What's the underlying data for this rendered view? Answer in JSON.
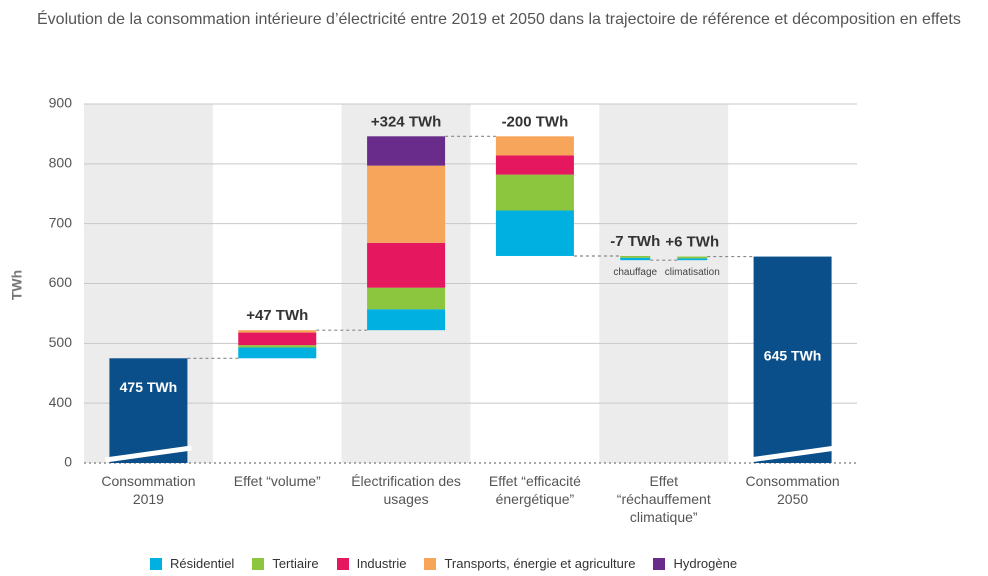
{
  "chart_data": {
    "type": "waterfall",
    "title": "Évolution de la consommation intérieure d’électricité entre 2019 et 2050 dans la trajectoire de référence et décomposition en effets",
    "ylabel": "TWh",
    "ylim": [
      0,
      900
    ],
    "yticks": [
      0,
      400,
      500,
      600,
      700,
      800,
      900
    ],
    "categories": [
      "Consommation 2019",
      "Effet “volume”",
      "Électrification des usages",
      "Effet “efficacité énergétique”",
      "Effet “réchauffement climatique”",
      "Consommation 2050"
    ],
    "start": {
      "value": 475,
      "label": "475 TWh",
      "color": "#0b4f8a"
    },
    "end": {
      "value": 645,
      "label": "645 TWh",
      "color": "#0b4f8a"
    },
    "series": [
      {
        "name": "Résidentiel",
        "color": "#00b0e0"
      },
      {
        "name": "Tertiaire",
        "color": "#8cc63f"
      },
      {
        "name": "Industrie",
        "color": "#e5175f"
      },
      {
        "name": "Transports, énergie et agriculture",
        "color": "#f7a55b"
      },
      {
        "name": "Hydrogène",
        "color": "#6a2c8a"
      }
    ],
    "steps": [
      {
        "bars": [
          {
            "values": [
              18,
              4,
              21,
              4,
              0
            ],
            "total": 47,
            "value_label": "+47 TWh"
          }
        ]
      },
      {
        "bars": [
          {
            "values": [
              35,
              36,
              75,
              129,
              49
            ],
            "total": 324,
            "value_label": "+324 TWh"
          }
        ]
      },
      {
        "bars": [
          {
            "values": [
              -76,
              -60,
              -32,
              -32,
              0
            ],
            "total": -200,
            "value_label": "-200 TWh"
          }
        ]
      },
      {
        "bars": [
          {
            "name": "chauffage",
            "values": [
              -4,
              -3,
              0,
              0,
              0
            ],
            "total": -7,
            "value_label": "-7 TWh"
          },
          {
            "name": "climatisation",
            "values": [
              3,
              3,
              0,
              0,
              0
            ],
            "total": 6,
            "value_label": "+6 TWh"
          }
        ]
      }
    ]
  }
}
